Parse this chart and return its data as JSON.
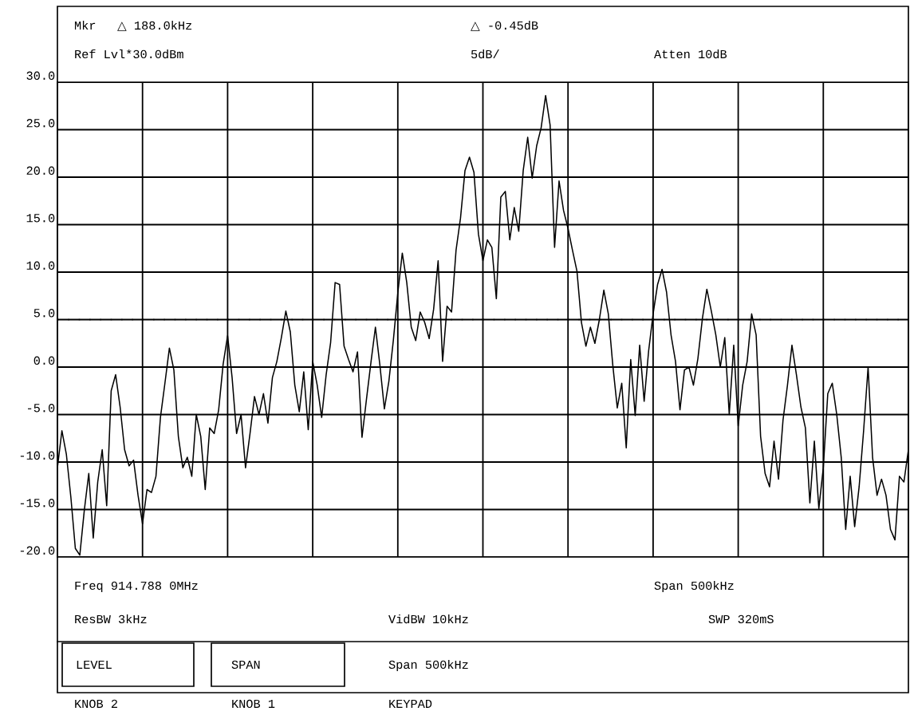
{
  "chart_data": {
    "type": "line",
    "categories": [
      null,
      null,
      null,
      null,
      null,
      null,
      null,
      null,
      null,
      null,
      null,
      null,
      null,
      null,
      null,
      null,
      null,
      null,
      null,
      null,
      null,
      null,
      null,
      null,
      null,
      null,
      null,
      null,
      null,
      null,
      null,
      null,
      null,
      null,
      null,
      null,
      null,
      null,
      null,
      null,
      null,
      null,
      null,
      null,
      null,
      null,
      null,
      null,
      null,
      null,
      null,
      null,
      null,
      null,
      null,
      null,
      null,
      null,
      null,
      null,
      null,
      null,
      null,
      null,
      null,
      null,
      null,
      null,
      null,
      null,
      null,
      null,
      null,
      null,
      null,
      null,
      null,
      null,
      null,
      null,
      null,
      null,
      null,
      null,
      null,
      null,
      null,
      null,
      null,
      null,
      null,
      null,
      null,
      null,
      null,
      null,
      null,
      null,
      null,
      null,
      null,
      null,
      null,
      null,
      null,
      null,
      null,
      null,
      null,
      null,
      null,
      null,
      null,
      null,
      null,
      null,
      null,
      null,
      null,
      null,
      null,
      null,
      null,
      null,
      null,
      null,
      null,
      null,
      null,
      null,
      null,
      null,
      null,
      null,
      null,
      null,
      null,
      null,
      null,
      null,
      null,
      null,
      null,
      null,
      null,
      null,
      null,
      null,
      null,
      null,
      null,
      null,
      null,
      null,
      null,
      null,
      null,
      null,
      null,
      null,
      null,
      null,
      null,
      null,
      null,
      null,
      null,
      null,
      null,
      null,
      null,
      null,
      null,
      null,
      null,
      null,
      null,
      null,
      null,
      null,
      null,
      null,
      null,
      null,
      null,
      null,
      null,
      null,
      null,
      null,
      null
    ],
    "ylim": [
      -20,
      30
    ],
    "yticks": [
      {
        "value": -20,
        "label": "-20.0"
      },
      {
        "value": -15,
        "label": "-15.0"
      },
      {
        "value": -10,
        "label": "-10.0"
      },
      {
        "value": -5,
        "label": "-5.0"
      },
      {
        "value": 0,
        "label": "0.0"
      },
      {
        "value": 5,
        "label": "5.0"
      },
      {
        "value": 10,
        "label": "10.0"
      },
      {
        "value": 15,
        "label": "15.0"
      },
      {
        "value": 20,
        "label": "20.0"
      },
      {
        "value": 25,
        "label": "25.0"
      },
      {
        "value": 30,
        "label": "30.0"
      }
    ],
    "tick_labels": "y",
    "grid": true,
    "marker": "none",
    "line_style": "solid",
    "ref_lines": [
      {
        "axis": "y",
        "value": 5,
        "color": "#000000",
        "line_style": "dotted"
      }
    ],
    "series": [
      {
        "color": "#000000",
        "values": [
          -10.6,
          -6.7,
          -9.2,
          -13.7,
          -19.1,
          -19.8,
          -15.1,
          -11.2,
          -18.0,
          -12.1,
          -8.7,
          -14.6,
          -2.5,
          -0.8,
          -4.2,
          -8.7,
          -10.4,
          -9.8,
          -13.5,
          -16.5,
          -12.9,
          -13.2,
          -11.5,
          -5.3,
          -1.7,
          2.0,
          -0.3,
          -7.3,
          -10.6,
          -9.5,
          -11.5,
          -5.0,
          -7.3,
          -12.9,
          -6.4,
          -7.0,
          -4.5,
          0.3,
          3.3,
          -1.1,
          -7.0,
          -5.0,
          -10.6,
          -7.0,
          -3.1,
          -5.0,
          -2.8,
          -5.9,
          -1.1,
          0.6,
          3.1,
          5.9,
          3.7,
          -1.9,
          -4.7,
          -0.5,
          -6.6,
          0.6,
          -1.9,
          -5.3,
          -0.8,
          2.6,
          8.9,
          8.7,
          2.2,
          0.8,
          -0.5,
          1.6,
          -7.4,
          -3.4,
          0.5,
          4.2,
          0.2,
          -4.4,
          -1.5,
          2.8,
          7.8,
          12.0,
          8.9,
          4.2,
          2.8,
          5.8,
          4.7,
          3.0,
          6.1,
          11.2,
          0.6,
          6.4,
          5.8,
          12.3,
          15.7,
          20.7,
          22.1,
          20.5,
          14.0,
          11.2,
          13.4,
          12.6,
          7.2,
          17.9,
          18.5,
          13.4,
          16.8,
          14.3,
          20.7,
          24.2,
          19.9,
          23.3,
          25.2,
          28.6,
          25.5,
          12.6,
          19.6,
          16.5,
          14.6,
          12.3,
          10.1,
          4.7,
          2.2,
          4.2,
          2.5,
          5.0,
          8.1,
          5.6,
          0.2,
          -4.3,
          -1.7,
          -8.5,
          0.8,
          -5.1,
          2.3,
          -3.6,
          1.7,
          5.6,
          8.7,
          10.3,
          7.9,
          3.4,
          0.6,
          -4.5,
          -0.3,
          0.0,
          -1.9,
          0.9,
          5.1,
          8.2,
          5.9,
          3.4,
          0.0,
          3.1,
          -5.0,
          2.3,
          -6.2,
          -1.9,
          0.6,
          5.6,
          3.4,
          -7.3,
          -11.2,
          -12.6,
          -7.8,
          -11.8,
          -5.6,
          -1.9,
          2.3,
          -0.8,
          -4.2,
          -6.4,
          -14.3,
          -7.8,
          -14.9,
          -10.6,
          -2.8,
          -1.7,
          -5.0,
          -9.5,
          -17.1,
          -11.5,
          -16.8,
          -12.6,
          -6.7,
          0.0,
          -9.5,
          -13.5,
          -11.8,
          -13.5,
          -17.1,
          -18.2,
          -11.5,
          -12.1,
          -8.7
        ]
      }
    ],
    "annotations": [
      "Mkr",
      "△ 188.0kHz",
      "△ -0.45dB",
      "Ref Lvl*30.0dBm",
      "5dB/",
      "Atten 10dB",
      "Freq 914.788 0MHz",
      "Span 500kHz",
      "ResBW 3kHz",
      "VidBW 10kHz",
      "SWP 320mS",
      "LEVEL",
      "SPAN",
      "Span 500kHz",
      "KNOB 2",
      "KNOB 1",
      "KEYPAD"
    ]
  }
}
